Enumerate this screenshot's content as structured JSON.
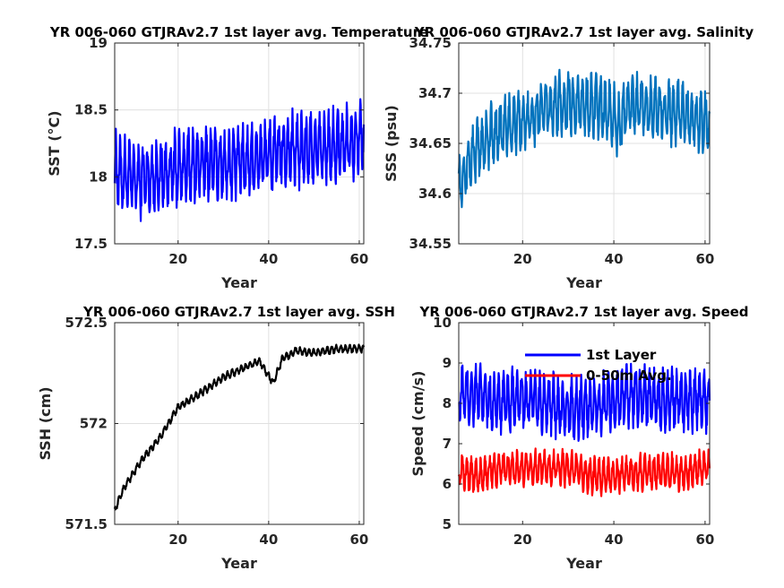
{
  "chart_data": [
    {
      "id": "sst",
      "type": "line",
      "title": "YR 006-060 GTJRAv2.7 1st layer avg. Temperature",
      "xlabel": "Year",
      "ylabel": "SST (°C)",
      "xlim": [
        6,
        61
      ],
      "ylim": [
        17.5,
        19
      ],
      "xticks": [
        "20",
        "40",
        "60"
      ],
      "yticks": [
        "17.5",
        "18",
        "18.5",
        "19"
      ],
      "grid": true,
      "series": [
        {
          "color": "#0000ff",
          "seasonal_amplitude": 0.22,
          "trend": [
            [
              6,
              18.05
            ],
            [
              10,
              17.98
            ],
            [
              15,
              18.0
            ],
            [
              20,
              18.06
            ],
            [
              25,
              18.1
            ],
            [
              30,
              18.1
            ],
            [
              35,
              18.12
            ],
            [
              40,
              18.16
            ],
            [
              45,
              18.2
            ],
            [
              50,
              18.2
            ],
            [
              55,
              18.22
            ],
            [
              60,
              18.3
            ],
            [
              61,
              18.32
            ]
          ]
        }
      ]
    },
    {
      "id": "sss",
      "type": "line",
      "title": "YR 006-060 GTJRAv2.7 1st layer avg. Salinity",
      "xlabel": "Year",
      "ylabel": "SSS (psu)",
      "xlim": [
        6,
        61
      ],
      "ylim": [
        34.55,
        34.75
      ],
      "xticks": [
        "20",
        "40",
        "60"
      ],
      "yticks": [
        "34.55",
        "34.6",
        "34.65",
        "34.7",
        "34.75"
      ],
      "grid": true,
      "series": [
        {
          "color": "#0072bd",
          "seasonal_amplitude": 0.025,
          "trend": [
            [
              6,
              34.61
            ],
            [
              8,
              34.63
            ],
            [
              12,
              34.655
            ],
            [
              16,
              34.665
            ],
            [
              20,
              34.672
            ],
            [
              25,
              34.685
            ],
            [
              30,
              34.69
            ],
            [
              35,
              34.688
            ],
            [
              40,
              34.68
            ],
            [
              41,
              34.665
            ],
            [
              43,
              34.688
            ],
            [
              48,
              34.685
            ],
            [
              55,
              34.68
            ],
            [
              61,
              34.67
            ]
          ]
        }
      ]
    },
    {
      "id": "ssh",
      "type": "line",
      "title": "YR 006-060 GTJRAv2.7 1st layer avg. SSH",
      "xlabel": "Year",
      "ylabel": "SSH (cm)",
      "xlim": [
        6,
        61
      ],
      "ylim": [
        571.5,
        572.5
      ],
      "xticks": [
        "20",
        "40",
        "60"
      ],
      "yticks": [
        "571.5",
        "572",
        "572.5"
      ],
      "grid": true,
      "series": [
        {
          "color": "#000000",
          "seasonal_amplitude": 0.015,
          "trend": [
            [
              6,
              571.57
            ],
            [
              8,
              571.68
            ],
            [
              12,
              571.82
            ],
            [
              16,
              571.93
            ],
            [
              20,
              572.08
            ],
            [
              25,
              572.15
            ],
            [
              30,
              572.23
            ],
            [
              35,
              572.28
            ],
            [
              38,
              572.31
            ],
            [
              41,
              572.2
            ],
            [
              43,
              572.32
            ],
            [
              46,
              572.36
            ],
            [
              50,
              572.35
            ],
            [
              55,
              572.37
            ],
            [
              61,
              572.37
            ]
          ]
        }
      ]
    },
    {
      "id": "speed",
      "type": "line",
      "title": "YR 006-060 GTJRAv2.7 1st layer avg. Speed",
      "xlabel": "Year",
      "ylabel": "Speed (cm/s)",
      "xlim": [
        6,
        61
      ],
      "ylim": [
        5,
        10
      ],
      "xticks": [
        "20",
        "40",
        "60"
      ],
      "yticks": [
        "5",
        "6",
        "7",
        "8",
        "9",
        "10"
      ],
      "grid": false,
      "legend": "top",
      "series": [
        {
          "name": "1st Layer",
          "color": "#0000ff",
          "seasonal_amplitude": 0.6,
          "trend": [
            [
              6,
              8.2
            ],
            [
              10,
              8.2
            ],
            [
              15,
              8.0
            ],
            [
              20,
              8.1
            ],
            [
              25,
              8.0
            ],
            [
              30,
              7.9
            ],
            [
              35,
              7.9
            ],
            [
              40,
              8.1
            ],
            [
              45,
              8.2
            ],
            [
              50,
              8.1
            ],
            [
              55,
              8.1
            ],
            [
              61,
              8.1
            ]
          ]
        },
        {
          "name": "0-50m Avg.",
          "color": "#ff0000",
          "seasonal_amplitude": 0.35,
          "trend": [
            [
              6,
              6.3
            ],
            [
              10,
              6.2
            ],
            [
              15,
              6.4
            ],
            [
              20,
              6.4
            ],
            [
              25,
              6.4
            ],
            [
              30,
              6.4
            ],
            [
              35,
              6.2
            ],
            [
              40,
              6.2
            ],
            [
              45,
              6.3
            ],
            [
              50,
              6.3
            ],
            [
              55,
              6.3
            ],
            [
              61,
              6.4
            ]
          ]
        }
      ]
    }
  ]
}
